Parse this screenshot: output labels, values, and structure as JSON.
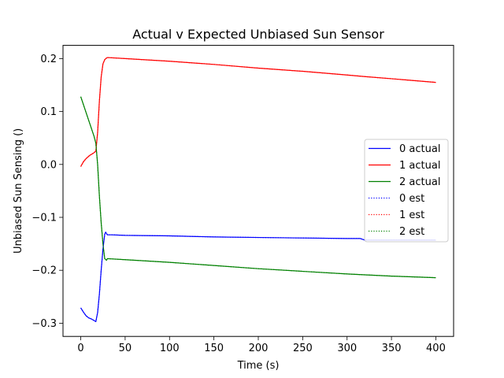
{
  "chart_data": {
    "type": "line",
    "title": "Actual v Expected Unbiased Sun Sensor",
    "xlabel": "Time (s)",
    "ylabel": "Unbiased Sun Sensing ()",
    "xlim": [
      -20,
      420
    ],
    "ylim": [
      -0.325,
      0.225
    ],
    "xticks": [
      0,
      50,
      100,
      150,
      200,
      250,
      300,
      350,
      400
    ],
    "xtick_labels": [
      "0",
      "50",
      "100",
      "150",
      "200",
      "250",
      "300",
      "350",
      "400"
    ],
    "yticks": [
      -0.3,
      -0.2,
      -0.1,
      0.0,
      0.1,
      0.2
    ],
    "ytick_labels": [
      "−0.3",
      "−0.2",
      "−0.1",
      "0.0",
      "0.1",
      "0.2"
    ],
    "grid": false,
    "legend_position": "center-right",
    "series": [
      {
        "name": "0 actual",
        "color": "#0000ff",
        "style": "solid",
        "x": [
          0,
          3,
          6,
          9,
          12,
          15,
          17,
          19,
          21,
          23,
          25,
          27,
          28,
          30,
          35,
          50,
          100,
          150,
          200,
          250,
          300,
          315,
          320,
          350,
          400
        ],
        "y": [
          -0.271,
          -0.279,
          -0.286,
          -0.29,
          -0.292,
          -0.295,
          -0.297,
          -0.28,
          -0.245,
          -0.2,
          -0.16,
          -0.132,
          -0.128,
          -0.133,
          -0.133,
          -0.134,
          -0.135,
          -0.137,
          -0.138,
          -0.139,
          -0.14,
          -0.14,
          -0.143,
          -0.143,
          -0.143
        ]
      },
      {
        "name": "1 actual",
        "color": "#ff0000",
        "style": "solid",
        "x": [
          0,
          3,
          6,
          10,
          14,
          17,
          19,
          21,
          23,
          25,
          27,
          29,
          30,
          50,
          100,
          150,
          200,
          250,
          300,
          320,
          350,
          400
        ],
        "y": [
          -0.004,
          0.005,
          0.011,
          0.017,
          0.021,
          0.025,
          0.06,
          0.12,
          0.165,
          0.19,
          0.198,
          0.201,
          0.202,
          0.2,
          0.195,
          0.189,
          0.182,
          0.176,
          0.169,
          0.166,
          0.162,
          0.155
        ]
      },
      {
        "name": "2 actual",
        "color": "#008000",
        "style": "solid",
        "x": [
          0,
          4,
          8,
          12,
          15,
          17,
          19,
          21,
          23,
          25,
          27,
          29,
          30,
          50,
          100,
          150,
          200,
          250,
          300,
          350,
          400
        ],
        "y": [
          0.128,
          0.108,
          0.088,
          0.068,
          0.053,
          0.04,
          0.0,
          -0.06,
          -0.11,
          -0.15,
          -0.178,
          -0.181,
          -0.178,
          -0.18,
          -0.185,
          -0.191,
          -0.197,
          -0.202,
          -0.207,
          -0.211,
          -0.214
        ]
      },
      {
        "name": "0 est",
        "color": "#0000ff",
        "style": "dotted",
        "x": [
          0,
          3,
          6,
          9,
          12,
          15,
          17,
          19,
          21,
          23,
          25,
          27,
          28,
          30,
          35,
          50,
          100,
          150,
          200,
          250,
          300,
          315,
          320,
          350,
          400
        ],
        "y": [
          -0.271,
          -0.279,
          -0.286,
          -0.29,
          -0.292,
          -0.295,
          -0.297,
          -0.28,
          -0.245,
          -0.2,
          -0.16,
          -0.132,
          -0.128,
          -0.133,
          -0.133,
          -0.134,
          -0.135,
          -0.137,
          -0.138,
          -0.139,
          -0.14,
          -0.14,
          -0.143,
          -0.143,
          -0.143
        ]
      },
      {
        "name": "1 est",
        "color": "#ff0000",
        "style": "dotted",
        "x": [
          0,
          3,
          6,
          10,
          14,
          17,
          19,
          21,
          23,
          25,
          27,
          29,
          30,
          50,
          100,
          150,
          200,
          250,
          300,
          320,
          350,
          400
        ],
        "y": [
          -0.004,
          0.005,
          0.011,
          0.017,
          0.021,
          0.025,
          0.06,
          0.12,
          0.165,
          0.19,
          0.198,
          0.201,
          0.202,
          0.2,
          0.195,
          0.189,
          0.182,
          0.176,
          0.169,
          0.166,
          0.162,
          0.155
        ]
      },
      {
        "name": "2 est",
        "color": "#008000",
        "style": "dotted",
        "x": [
          0,
          4,
          8,
          12,
          15,
          17,
          19,
          21,
          23,
          25,
          27,
          29,
          30,
          50,
          100,
          150,
          200,
          250,
          300,
          350,
          400
        ],
        "y": [
          0.128,
          0.108,
          0.088,
          0.068,
          0.053,
          0.04,
          0.0,
          -0.06,
          -0.11,
          -0.15,
          -0.178,
          -0.181,
          -0.178,
          -0.18,
          -0.185,
          -0.191,
          -0.197,
          -0.202,
          -0.207,
          -0.211,
          -0.214
        ]
      }
    ]
  }
}
